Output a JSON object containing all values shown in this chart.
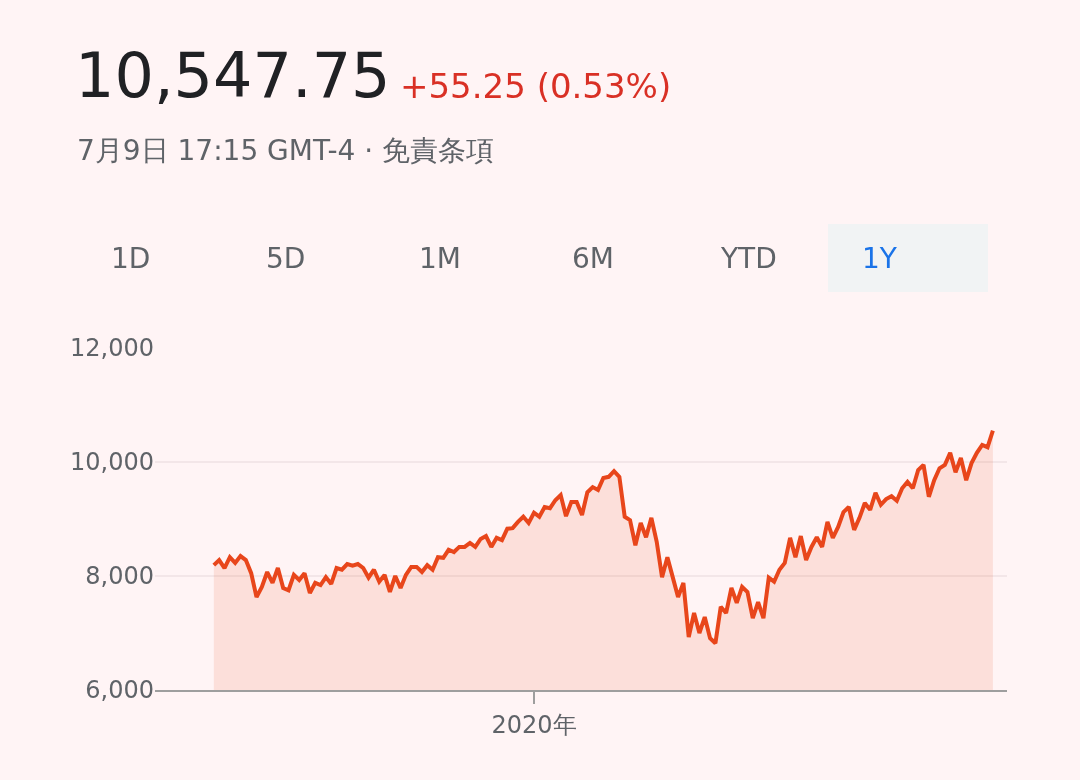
{
  "chart_data": {
    "type": "area",
    "title": "10,547.75",
    "subtitle": "7月9日 17:15 GMT-4 · 免責条項",
    "annotations": [
      "+55.25 (0.53%)",
      "1D",
      "5D",
      "1M",
      "6M",
      "YTD",
      "1Y"
    ],
    "categories": [
      null,
      null,
      null,
      null,
      null,
      null,
      null,
      null,
      null,
      null,
      null,
      null,
      null,
      null,
      null,
      null,
      null,
      null,
      null,
      null,
      null,
      null,
      null,
      null,
      null,
      null,
      null,
      null,
      null,
      null,
      null,
      null,
      null,
      null,
      null,
      null,
      null,
      null,
      null,
      null,
      null,
      null,
      null,
      null,
      null,
      null,
      null,
      null,
      null,
      null,
      null,
      null,
      null,
      null,
      null,
      null,
      null,
      null,
      null,
      null,
      "2020年",
      null,
      null,
      null,
      null,
      null,
      null,
      null,
      null,
      null,
      null,
      null,
      null,
      null,
      null,
      null,
      null,
      null,
      null,
      null,
      null,
      null,
      null,
      null,
      null,
      null,
      null,
      null,
      null,
      null,
      null,
      null,
      null,
      null,
      null,
      null,
      null,
      null,
      null,
      null,
      null,
      null,
      null,
      null,
      null,
      null,
      null,
      null,
      null,
      null,
      null,
      null,
      null,
      null,
      null,
      null,
      null,
      null,
      null,
      null,
      null,
      null,
      null,
      null,
      null,
      null,
      null,
      null,
      null,
      null,
      null,
      null,
      null,
      null,
      null,
      null,
      null,
      null,
      null,
      null,
      null,
      null,
      null,
      null,
      null,
      null,
      null
    ],
    "series": [
      {
        "color": "#e8461b",
        "values": [
          8190,
          8280,
          8140,
          8330,
          8230,
          8350,
          8280,
          8050,
          7630,
          7810,
          8070,
          7880,
          8140,
          7790,
          7750,
          8020,
          7930,
          8050,
          7700,
          7880,
          7840,
          7980,
          7860,
          8140,
          8110,
          8210,
          8180,
          8210,
          8140,
          7970,
          8110,
          7900,
          8020,
          7720,
          8000,
          7790,
          8020,
          8160,
          8160,
          8070,
          8190,
          8110,
          8330,
          8320,
          8460,
          8420,
          8510,
          8510,
          8580,
          8510,
          8650,
          8700,
          8510,
          8670,
          8630,
          8830,
          8840,
          8950,
          9040,
          8930,
          9110,
          9040,
          9210,
          9190,
          9330,
          9420,
          9050,
          9300,
          9300,
          9070,
          9470,
          9560,
          9510,
          9720,
          9740,
          9840,
          9740,
          9040,
          8980,
          8540,
          8930,
          8680,
          9020,
          8600,
          7980,
          8330,
          7980,
          7630,
          7880,
          6930,
          7350,
          7000,
          7280,
          6910,
          6820,
          7460,
          7350,
          7790,
          7530,
          7810,
          7720,
          7260,
          7540,
          7260,
          7970,
          7900,
          8110,
          8230,
          8670,
          8330,
          8700,
          8280,
          8510,
          8680,
          8510,
          8950,
          8670,
          8860,
          9120,
          9210,
          8810,
          9020,
          9280,
          9160,
          9460,
          9250,
          9350,
          9400,
          9320,
          9540,
          9650,
          9540,
          9860,
          9950,
          9390,
          9680,
          9890,
          9950,
          10160,
          9820,
          10070,
          9680,
          9980,
          10160,
          10300,
          10260,
          10550
        ]
      }
    ],
    "ylim": [
      6000,
      12000
    ],
    "yticks": [
      {
        "value": 6000,
        "label": "6,000"
      },
      {
        "value": 8000,
        "label": "8,000"
      },
      {
        "value": 10000,
        "label": "10,000"
      },
      {
        "value": 12000,
        "label": "12,000"
      }
    ],
    "grid": "y"
  }
}
